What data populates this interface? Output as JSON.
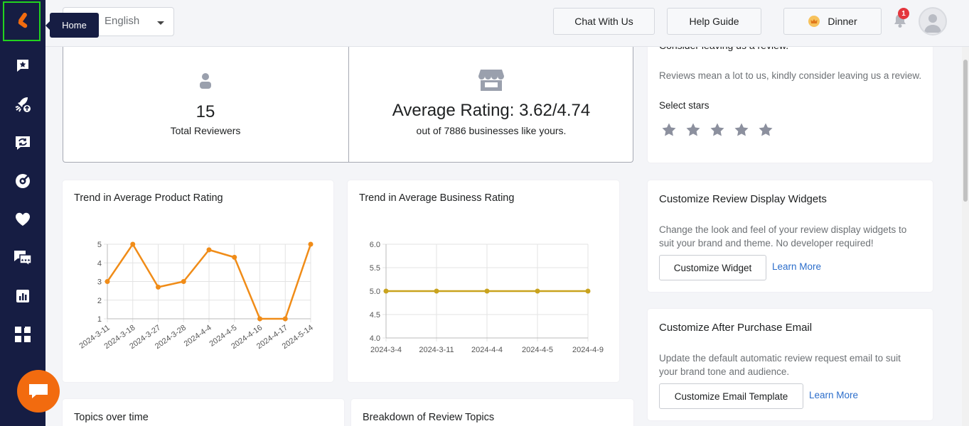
{
  "sidebar": {
    "tooltip": "Home",
    "items": [
      {
        "icon": "reviews-star-icon"
      },
      {
        "icon": "launch-rocket-icon"
      },
      {
        "icon": "sync-icon"
      },
      {
        "icon": "target-icon"
      },
      {
        "icon": "heart-icon"
      },
      {
        "icon": "chat-reviews-icon"
      },
      {
        "icon": "analytics-icon"
      },
      {
        "icon": "apps-grid-icon"
      }
    ],
    "brand_color": "#f26b0f"
  },
  "topbar": {
    "language": "English",
    "chat_with_us": "Chat With Us",
    "help_guide": "Help Guide",
    "plan_label": "Dinner",
    "notification_count": "1"
  },
  "stats": {
    "reviewers_value": "15",
    "reviewers_label": "Total Reviewers",
    "rating_value": "Average Rating: 3.62/4.74",
    "rating_sub": "out of 7886 businesses like yours."
  },
  "review_card": {
    "title": "Consider leaving us a review.",
    "body": "Reviews mean a lot to us, kindly consider leaving us a review.",
    "select_stars": "Select stars",
    "stars_count": 5
  },
  "widgets_card": {
    "title": "Customize Review Display Widgets",
    "body_line1": "Change the look and feel of your review display widgets to",
    "body_line2": "suit your brand and theme. No developer required!",
    "button": "Customize Widget",
    "link": "Learn More"
  },
  "email_card": {
    "title": "Customize After Purchase Email",
    "body_line1": "Update the default automatic review request email to suit",
    "body_line2": "your brand tone and audience.",
    "button": "Customize Email Template",
    "link": "Learn More"
  },
  "bottom_cards": {
    "topics_over_time": "Topics over time",
    "breakdown": "Breakdown of Review Topics"
  },
  "chart_data": [
    {
      "type": "line",
      "title": "Trend in Average Product Rating",
      "x": [
        "2024-3-11",
        "2024-3-18",
        "2024-3-27",
        "2024-3-28",
        "2024-4-4",
        "2024-4-5",
        "2024-4-16",
        "2024-4-17",
        "2024-5-14"
      ],
      "series": [
        {
          "values": [
            3,
            5,
            2.7,
            3,
            4.7,
            4.3,
            1,
            1,
            5
          ],
          "color": "#f08c18"
        }
      ],
      "yticks": [
        "1",
        "2",
        "3",
        "4",
        "5"
      ],
      "ylim": [
        1,
        5
      ],
      "grid": true
    },
    {
      "type": "line",
      "title": "Trend in Average Business Rating",
      "x": [
        "2024-3-4",
        "2024-3-11",
        "2024-4-4",
        "2024-4-5",
        "2024-4-9"
      ],
      "series": [
        {
          "values": [
            5.0,
            5.0,
            5.0,
            5.0,
            5.0
          ],
          "color": "#c9a31e"
        }
      ],
      "yticks": [
        "4.0",
        "4.5",
        "5.0",
        "5.5",
        "6.0"
      ],
      "ylim": [
        4.0,
        6.0
      ],
      "grid": true
    }
  ]
}
